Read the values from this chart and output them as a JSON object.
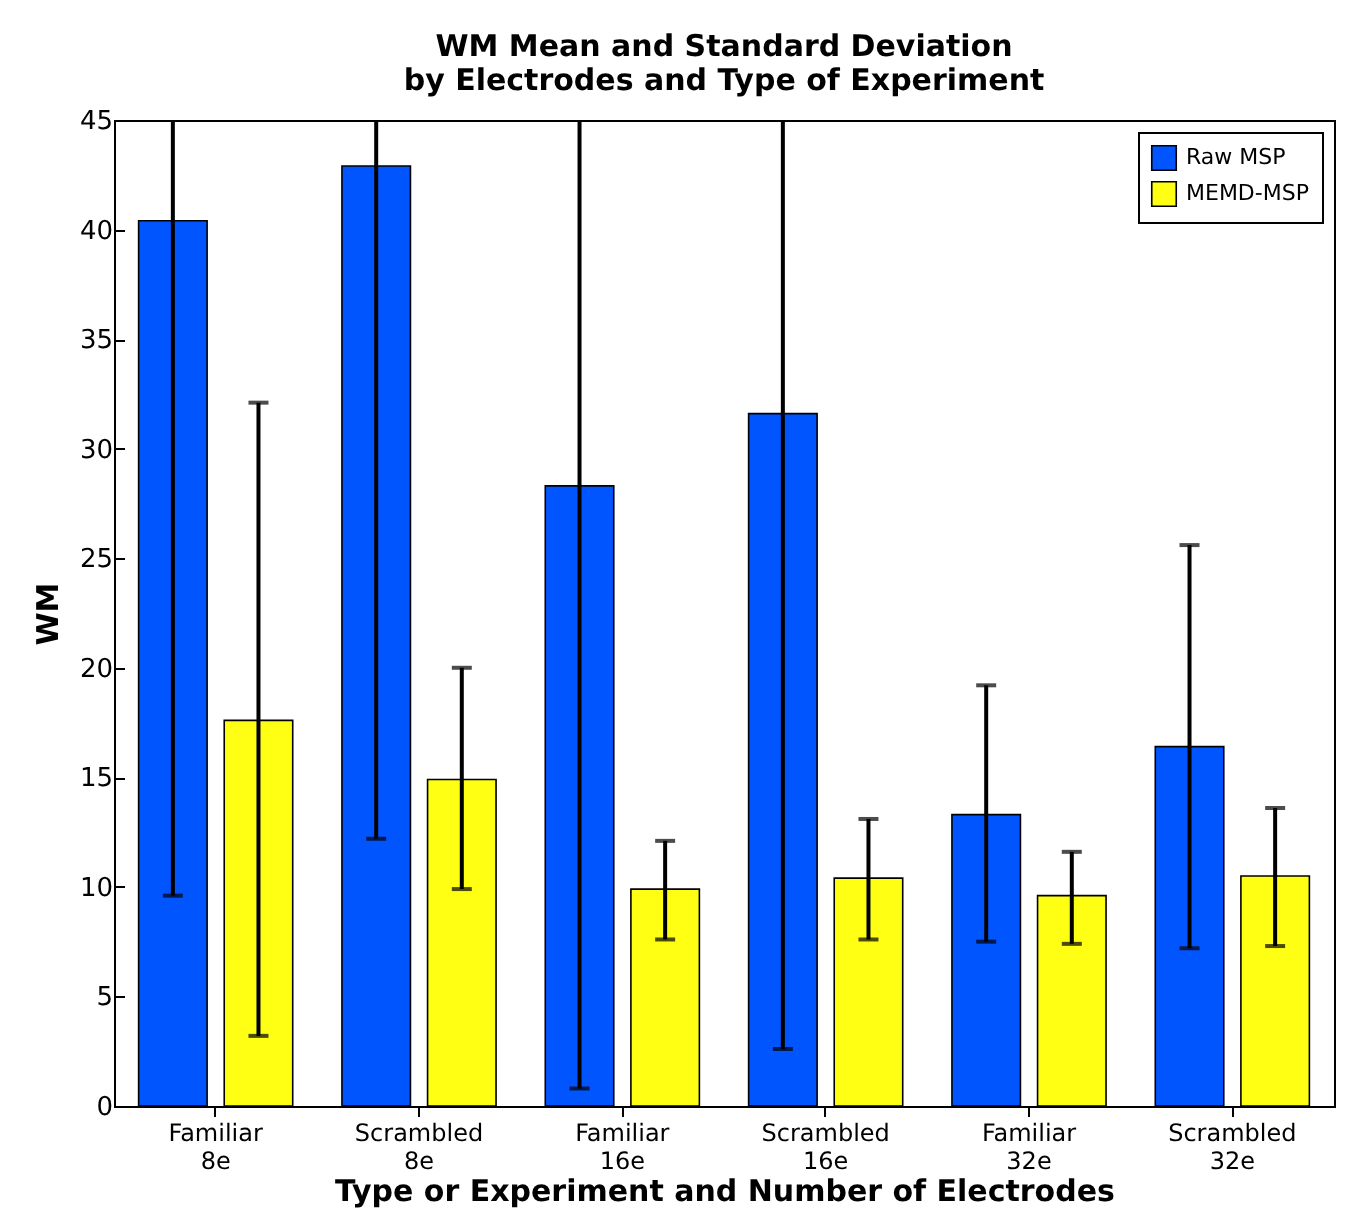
{
  "chart_data": {
    "type": "bar",
    "title": "WM Mean and Standard Deviation\nby Electrodes and Type of Experiment",
    "xlabel": "Type or Experiment and Number of Electrodes",
    "ylabel": "WM",
    "categories": [
      "Familiar 8e",
      "Scrambled 8e",
      "Familiar 16e",
      "Scrambled 16e",
      "Familiar 32e",
      "Scrambled 32e"
    ],
    "series": [
      {
        "name": "Raw MSP",
        "color": "#0055ff",
        "values": [
          40.4,
          42.9,
          28.3,
          31.6,
          13.3,
          16.4
        ],
        "errors": [
          [
            9.6,
            45
          ],
          [
            12.2,
            45
          ],
          [
            0.8,
            45
          ],
          [
            2.6,
            45
          ],
          [
            7.5,
            19.2
          ],
          [
            7.2,
            25.6
          ]
        ]
      },
      {
        "name": "MEMD-MSP",
        "color": "#ffff14",
        "values": [
          17.6,
          14.9,
          9.9,
          10.4,
          9.6,
          10.5
        ],
        "errors": [
          [
            3.2,
            32.1
          ],
          [
            9.9,
            20.0
          ],
          [
            7.6,
            12.1
          ],
          [
            7.6,
            13.1
          ],
          [
            7.4,
            11.6
          ],
          [
            7.3,
            13.6
          ]
        ]
      }
    ],
    "ylim": [
      0,
      45
    ],
    "yticks": [
      0,
      5,
      10,
      15,
      20,
      25,
      30,
      35,
      40,
      45
    ],
    "grid": false,
    "legend": "top right"
  }
}
